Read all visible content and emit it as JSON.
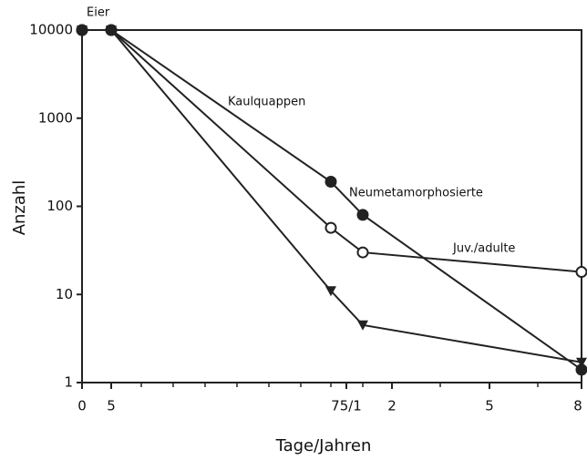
{
  "chart_data": {
    "type": "line",
    "x_label": "Tage/Jahren",
    "y_label": "Anzahl",
    "xtick_labels": [
      "0",
      "5",
      "75/1",
      "2",
      "5",
      "8"
    ],
    "annotations": [
      "Eier",
      "Kaulquappen",
      "Neumetamorphosierte",
      "Juv./adulte"
    ],
    "series": [
      {
        "marker": "filled-circle",
        "color": "#222",
        "values": [
          10000,
          10000,
          190,
          80,
          1.4
        ]
      },
      {
        "marker": "open-circle",
        "color": "#222",
        "values": [
          10000,
          10000,
          57,
          30,
          18
        ]
      },
      {
        "marker": "triangle-down",
        "color": "#222",
        "values": [
          10000,
          10000,
          11,
          4.5,
          1.7
        ]
      }
    ],
    "ylim": [
      1,
      10000
    ],
    "yticks": [
      1,
      10,
      100,
      1000,
      10000
    ],
    "log_y": true
  }
}
